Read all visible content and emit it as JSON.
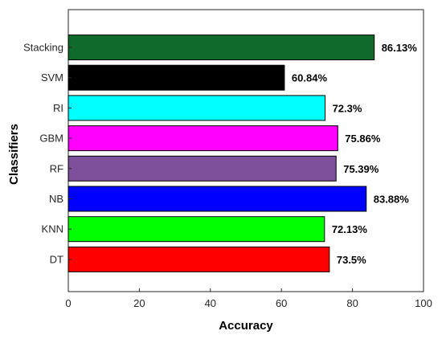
{
  "chart_data": {
    "type": "bar",
    "orientation": "horizontal",
    "title": "",
    "xlabel": "Accuracy",
    "ylabel": "Classifiers",
    "xlim": [
      0,
      100
    ],
    "xticks": [
      0,
      20,
      40,
      60,
      80,
      100
    ],
    "grid": false,
    "legend": "none",
    "categories": [
      "Stacking",
      "SVM",
      "RI",
      "GBM",
      "RF",
      "NB",
      "KNN",
      "DT"
    ],
    "values": [
      86.13,
      60.84,
      72.3,
      75.86,
      75.39,
      83.88,
      72.13,
      73.5
    ],
    "data_labels": [
      "86.13%",
      "60.84%",
      "72.3%",
      "75.86%",
      "75.39%",
      "83.88%",
      "72.13%",
      "73.5%"
    ],
    "colors": [
      "#0f6a2b",
      "#000000",
      "#00ffff",
      "#ff00ff",
      "#7e4f9a",
      "#0000ff",
      "#00ff00",
      "#ff0000"
    ]
  }
}
